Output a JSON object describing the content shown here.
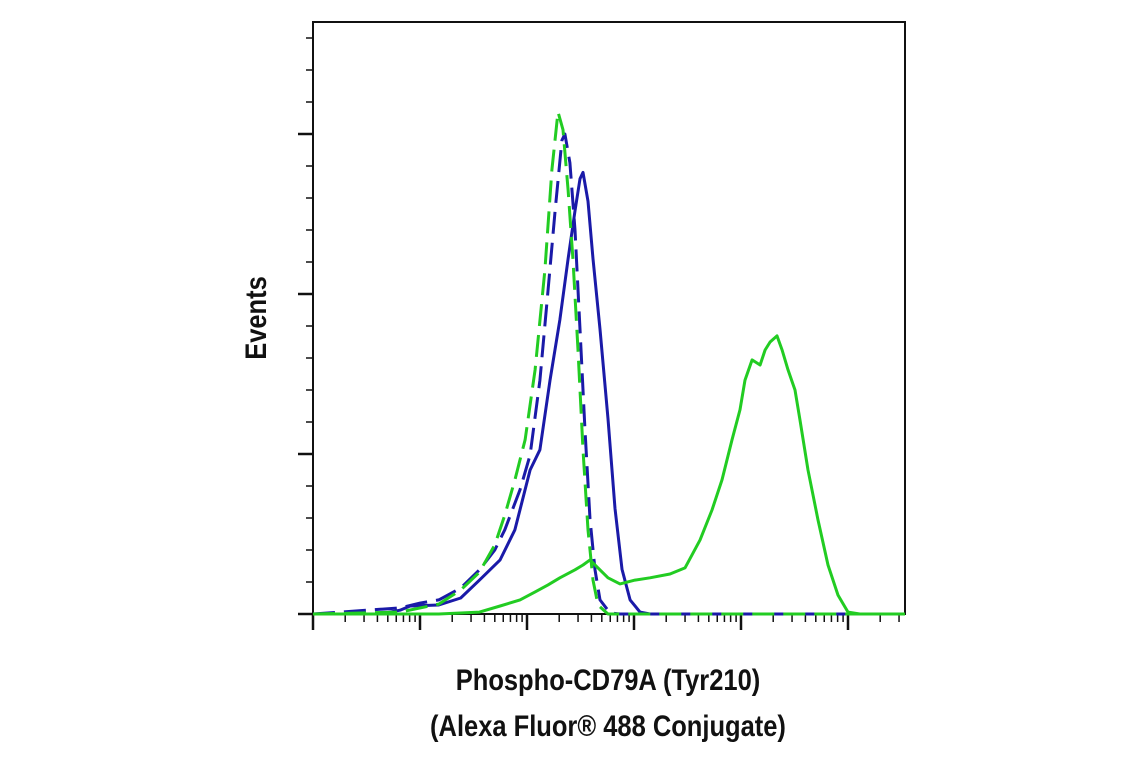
{
  "chart_data": {
    "type": "line",
    "x_label": "Phospho-CD79A (Tyr210)",
    "x_label_line2": "(Alexa Fluor® 488 Conjugate)",
    "y_label": "Events",
    "xscale": "log",
    "xlim": [
      1,
      341000
    ],
    "xticks": [
      1,
      10,
      100,
      1000,
      10000,
      100000
    ],
    "xminorticks": [
      2,
      3,
      4,
      5,
      6,
      7,
      8,
      9,
      20,
      30,
      40,
      50,
      60,
      70,
      80,
      90,
      200,
      300,
      400,
      500,
      600,
      700,
      800,
      900,
      2000,
      3000,
      4000,
      5000,
      6000,
      7000,
      8000,
      9000,
      20000,
      30000,
      40000,
      50000,
      60000,
      70000,
      80000,
      90000,
      200000,
      300000
    ],
    "ylim": [
      0,
      185
    ],
    "yticks": [
      0,
      50,
      100,
      150
    ],
    "yminorticks": [
      10,
      20,
      30,
      40,
      60,
      70,
      80,
      90,
      110,
      120,
      130,
      140,
      160,
      170,
      180
    ],
    "series": [
      {
        "color": "#1a1aa8",
        "dash": false,
        "x": [
          1,
          4.2,
          6.5,
          8.1,
          15,
          24,
          36,
          56,
          77,
          107,
          132,
          164,
          203,
          242,
          281,
          313,
          334,
          372,
          414,
          481,
          571,
          664,
          772,
          919,
          1138,
          1412,
          341000
        ],
        "values": [
          0,
          0,
          1.2,
          2.5,
          2.8,
          5,
          10.6,
          16.9,
          26.3,
          45,
          51.3,
          73,
          92,
          111,
          126,
          136,
          138,
          129,
          111,
          89,
          61,
          33,
          14,
          4.4,
          0.6,
          0,
          0
        ]
      },
      {
        "color": "#1a1aa8",
        "dash": true,
        "x": [
          1,
          6.5,
          10,
          15,
          24,
          36,
          50,
          62,
          86,
          107,
          132,
          157,
          183,
          212,
          226,
          252,
          281,
          313,
          348,
          388,
          432,
          481,
          597,
          740,
          341000
        ],
        "values": [
          0,
          1.9,
          3.4,
          4.4,
          8.1,
          13.8,
          20,
          26.3,
          38.8,
          49.7,
          73,
          101,
          126,
          148,
          150,
          141,
          120,
          89,
          58,
          29.7,
          13.8,
          4.4,
          0.3,
          0,
          0
        ]
      },
      {
        "color": "#22cc22",
        "dash": true,
        "x": [
          1,
          6.5,
          15,
          24,
          36,
          50,
          62,
          77,
          96,
          119,
          147,
          171,
          195,
          217,
          242,
          269,
          300,
          334,
          372,
          414,
          461,
          571,
          341000
        ],
        "values": [
          0,
          0.6,
          3.1,
          7.5,
          13.1,
          21.6,
          30.9,
          41.9,
          54.4,
          76.3,
          107.5,
          138.8,
          156.9,
          151.3,
          132.5,
          110.6,
          82.5,
          51.3,
          26.3,
          10.6,
          2.8,
          0,
          0
        ]
      },
      {
        "color": "#22cc22",
        "dash": false,
        "x": [
          1,
          15,
          36,
          56,
          86,
          119,
          157,
          203,
          281,
          334,
          388,
          461,
          571,
          740,
          1021,
          1412,
          2170,
          3000,
          4140,
          5360,
          6640,
          8240,
          9790,
          10900,
          12700,
          15100,
          16800,
          18700,
          21700,
          24200,
          27500,
          32000,
          35600,
          42300,
          52400,
          65000,
          80700,
          100000,
          129000,
          341000
        ],
        "values": [
          0,
          0,
          0.6,
          2.5,
          4.4,
          6.9,
          9.1,
          11.3,
          13.8,
          15.3,
          16.9,
          14.4,
          11.3,
          9.4,
          10.6,
          11.3,
          12.5,
          14.4,
          23.1,
          32.5,
          41.9,
          54.4,
          63.8,
          73.1,
          79.4,
          77.8,
          82.5,
          85,
          86.9,
          82.5,
          76.3,
          70,
          60.6,
          45,
          29.4,
          15.3,
          5.9,
          0.6,
          0,
          0
        ]
      }
    ]
  }
}
